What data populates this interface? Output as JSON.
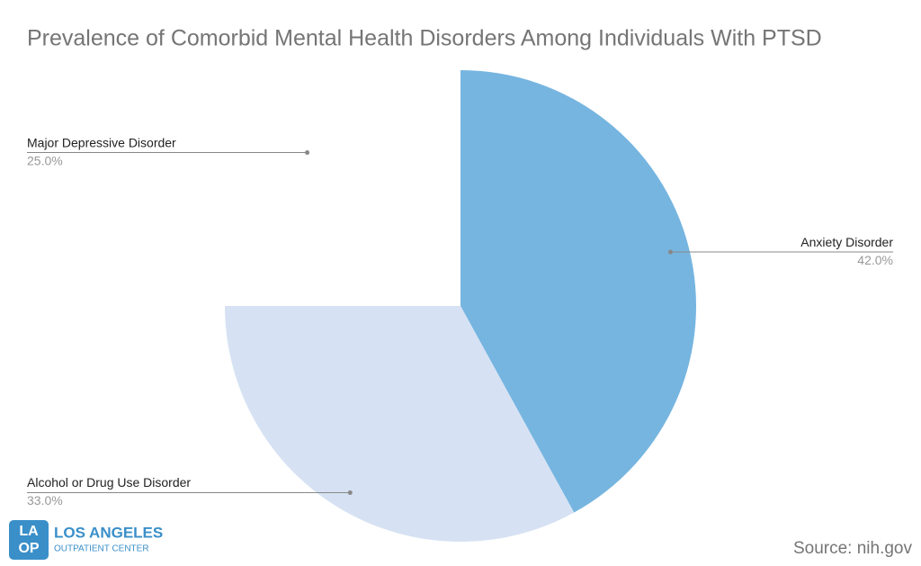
{
  "chart_data": {
    "type": "pie",
    "title": "Prevalence of Comorbid Mental Health Disorders Among Individuals With PTSD",
    "categories": [
      "Anxiety Disorder",
      "Alcohol or Drug Use Disorder",
      "Major Depressive Disorder"
    ],
    "values": [
      42,
      33,
      25
    ],
    "value_labels": [
      "42.0%",
      "33.0%",
      "25.0%"
    ],
    "colors": [
      "#76b5e0",
      "#d6e2f3",
      "#ffffff"
    ],
    "source": "Source: nih.gov"
  },
  "logo": {
    "mark_top": "LA",
    "mark_bottom": "OP",
    "name": "LOS ANGELES",
    "subtitle": "OUTPATIENT CENTER"
  }
}
